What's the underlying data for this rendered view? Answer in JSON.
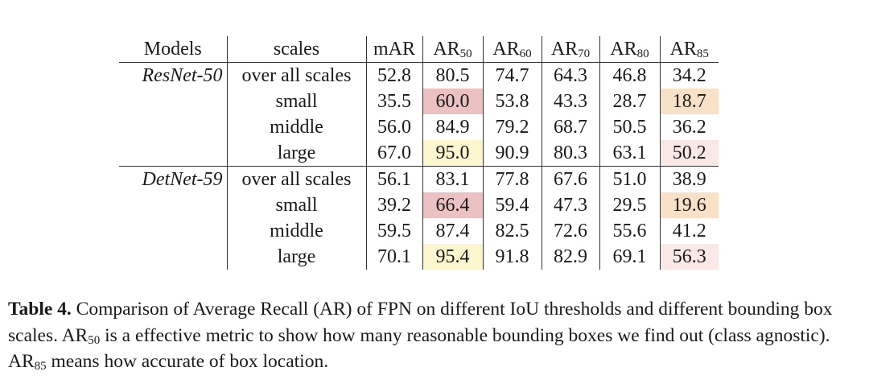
{
  "table": {
    "header": [
      {
        "text": "Models"
      },
      {
        "text": "scales"
      },
      {
        "text": "mAR"
      },
      {
        "text": "AR",
        "sub": "50"
      },
      {
        "text": "AR",
        "sub": "60"
      },
      {
        "text": "AR",
        "sub": "70"
      },
      {
        "text": "AR",
        "sub": "80"
      },
      {
        "text": "AR",
        "sub": "85"
      }
    ],
    "groups": [
      {
        "model": "ResNet-50",
        "rows": [
          [
            {
              "text": "over all scales"
            },
            {
              "text": "52.8"
            },
            {
              "text": "80.5"
            },
            {
              "text": "74.7"
            },
            {
              "text": "64.3"
            },
            {
              "text": "46.8"
            },
            {
              "text": "34.2"
            }
          ],
          [
            {
              "text": "small"
            },
            {
              "text": "35.5"
            },
            {
              "text": "60.0",
              "color": "#ebc1c1"
            },
            {
              "text": "53.8"
            },
            {
              "text": "43.3"
            },
            {
              "text": "28.7"
            },
            {
              "text": "18.7",
              "color": "#f8e1c6"
            }
          ],
          [
            {
              "text": "middle"
            },
            {
              "text": "56.0"
            },
            {
              "text": "84.9"
            },
            {
              "text": "79.2"
            },
            {
              "text": "68.7"
            },
            {
              "text": "50.5"
            },
            {
              "text": "36.2"
            }
          ],
          [
            {
              "text": "large"
            },
            {
              "text": "67.0"
            },
            {
              "text": "95.0",
              "color": "#fcf6cf"
            },
            {
              "text": "90.9"
            },
            {
              "text": "80.3"
            },
            {
              "text": "63.1"
            },
            {
              "text": "50.2",
              "color": "#f9e8e6"
            }
          ]
        ]
      },
      {
        "model": "DetNet-59",
        "rows": [
          [
            {
              "text": "over all scales"
            },
            {
              "text": "56.1"
            },
            {
              "text": "83.1"
            },
            {
              "text": "77.8"
            },
            {
              "text": "67.6"
            },
            {
              "text": "51.0"
            },
            {
              "text": "38.9"
            }
          ],
          [
            {
              "text": "small"
            },
            {
              "text": "39.2"
            },
            {
              "text": "66.4",
              "color": "#ebc1c1"
            },
            {
              "text": "59.4"
            },
            {
              "text": "47.3"
            },
            {
              "text": "29.5"
            },
            {
              "text": "19.6",
              "color": "#f8e1c6"
            }
          ],
          [
            {
              "text": "middle"
            },
            {
              "text": "59.5"
            },
            {
              "text": "87.4"
            },
            {
              "text": "82.5"
            },
            {
              "text": "72.6"
            },
            {
              "text": "55.6"
            },
            {
              "text": "41.2"
            }
          ],
          [
            {
              "text": "large"
            },
            {
              "text": "70.1"
            },
            {
              "text": "95.4",
              "color": "#fcf6cf"
            },
            {
              "text": "91.8"
            },
            {
              "text": "82.9"
            },
            {
              "text": "69.1"
            },
            {
              "text": "56.3",
              "color": "#f9e8e6"
            }
          ]
        ]
      }
    ]
  },
  "caption": {
    "label": "Table 4.",
    "segments": [
      {
        "text": " Comparison of Average Recall (AR) of FPN on different IoU thresholds and different bounding box scales. AR"
      },
      {
        "sub": "50"
      },
      {
        "text": " is a effective metric to show how many reasonable bounding boxes we find out (class agnostic). AR"
      },
      {
        "sub": "85"
      },
      {
        "text": " means how accurate of box location."
      }
    ]
  }
}
